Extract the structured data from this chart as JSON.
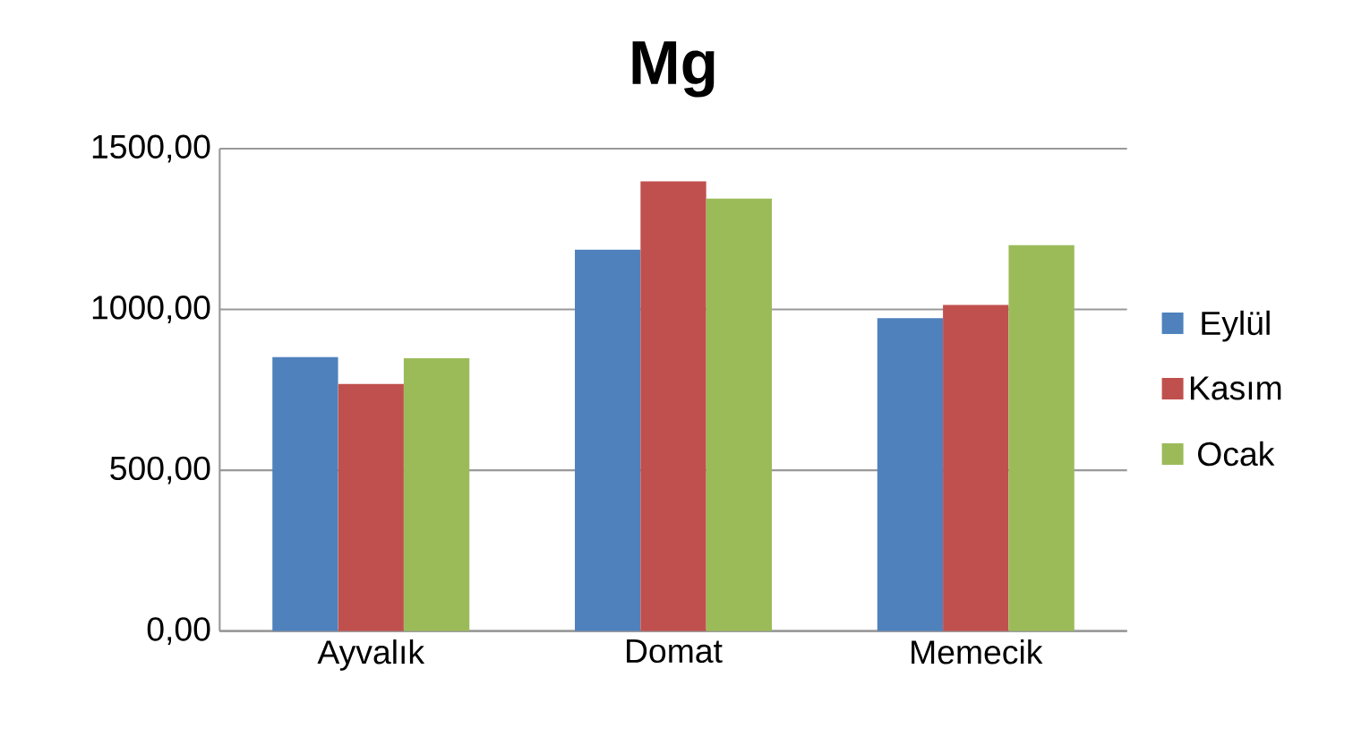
{
  "chart_data": {
    "type": "bar",
    "title": "Mg",
    "categories": [
      "Ayvalık",
      "Domat",
      "Memecik"
    ],
    "series": [
      {
        "name": "Eylül",
        "color": "#4f81bd",
        "values": [
          852,
          1186,
          973
        ]
      },
      {
        "name": "Kasım",
        "color": "#c0504d",
        "values": [
          768,
          1398,
          1014
        ]
      },
      {
        "name": "Ocak",
        "color": "#9bbb59",
        "values": [
          848,
          1345,
          1200
        ]
      }
    ],
    "ylim": [
      0,
      1500
    ],
    "yticks": [
      {
        "value": 0,
        "label": "0,00"
      },
      {
        "value": 500,
        "label": "500,00"
      },
      {
        "value": 1000,
        "label": "1000,00"
      },
      {
        "value": 1500,
        "label": "1500,00"
      }
    ],
    "grid": "y",
    "legend": "right"
  }
}
